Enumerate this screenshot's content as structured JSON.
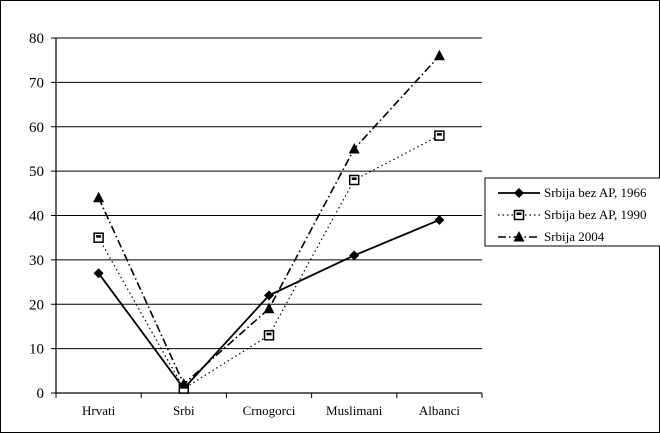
{
  "chart_data": {
    "type": "line",
    "categories": [
      "Hrvati",
      "Srbi",
      "Crnogorci",
      "Muslimani",
      "Albanci"
    ],
    "ylim": [
      0,
      80
    ],
    "yticks": [
      "0",
      "10",
      "20",
      "30",
      "40",
      "50",
      "60",
      "70",
      "80"
    ],
    "grid": true,
    "legend_position": "right",
    "series": [
      {
        "name": "Srbija bez AP, 1966",
        "values": [
          27,
          1,
          22,
          31,
          39
        ],
        "marker": "diamond",
        "line_style": "solid",
        "color": "#000000"
      },
      {
        "name": "Srbija bez AP, 1990",
        "values": [
          35,
          1,
          13,
          48,
          58
        ],
        "marker": "square",
        "line_style": "dotted",
        "color": "#000000"
      },
      {
        "name": "Srbija 2004",
        "values": [
          44,
          2,
          19,
          55,
          76
        ],
        "marker": "triangle",
        "line_style": "dashdot",
        "color": "#000000"
      }
    ]
  }
}
